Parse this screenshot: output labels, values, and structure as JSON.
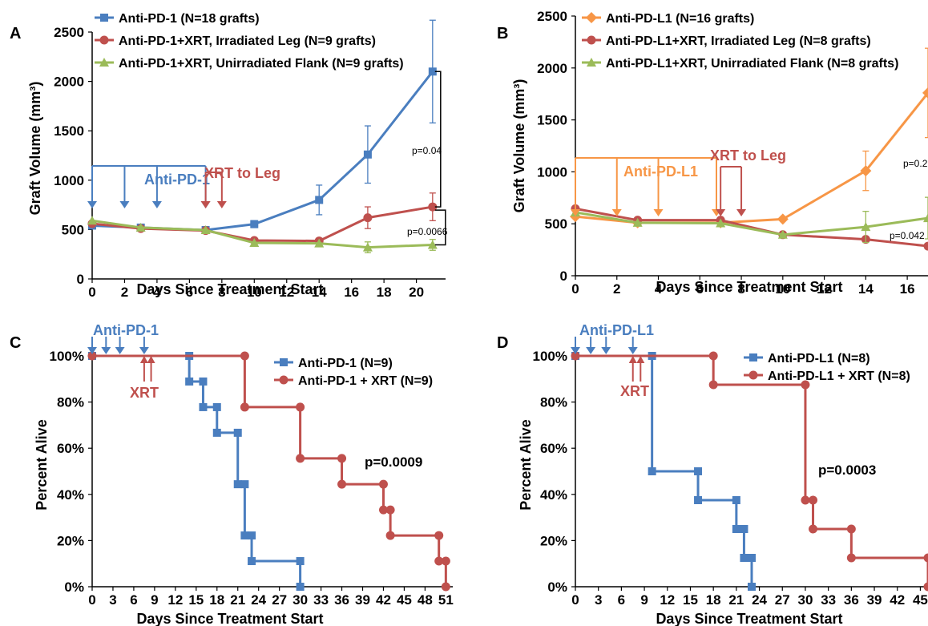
{
  "chart_data": [
    {
      "panel": "A",
      "type": "line",
      "xlabel": "Days Since Treatment Start",
      "ylabel": "Graft Volume (mm³)",
      "xlim": [
        0,
        21.8
      ],
      "ylim": [
        0,
        2500
      ],
      "xticks": [
        0,
        2,
        4,
        6,
        8,
        10,
        12,
        14,
        16,
        18,
        20
      ],
      "yticks": [
        0,
        500,
        1000,
        1500,
        2000,
        2500
      ],
      "legend_position": "top-left",
      "series": [
        {
          "name": "Anti-PD-1 (N=18 grafts)",
          "color": "#4a7ebf",
          "marker": "square",
          "x": [
            0,
            3,
            7,
            10,
            14,
            17,
            21
          ],
          "y": [
            540,
            520,
            495,
            555,
            800,
            1260,
            2100
          ],
          "err": [
            0,
            0,
            0,
            35,
            150,
            290,
            520
          ]
        },
        {
          "name": "Anti-PD-1+XRT, Irradiated Leg (N=9 grafts)",
          "color": "#bf504d",
          "marker": "circle",
          "x": [
            0,
            3,
            7,
            10,
            14,
            17,
            21
          ],
          "y": [
            560,
            510,
            490,
            390,
            385,
            620,
            730
          ],
          "err": [
            0,
            0,
            0,
            0,
            0,
            110,
            140
          ]
        },
        {
          "name": "Anti-PD-1+XRT, Unirradiated Flank (N=9 grafts)",
          "color": "#9bbb59",
          "marker": "triangle",
          "x": [
            0,
            3,
            7,
            10,
            14,
            17,
            21
          ],
          "y": [
            590,
            520,
            495,
            365,
            360,
            320,
            345
          ],
          "err": [
            0,
            0,
            0,
            0,
            0,
            55,
            55
          ]
        }
      ],
      "annotations": {
        "drug_label": "Anti-PD-1",
        "drug_color": "#4a7ebf",
        "drug_days": [
          0,
          2,
          4,
          7
        ],
        "xrt_label": "XRT to Leg",
        "xrt_color": "#bf504d",
        "xrt_days": [
          7,
          8
        ],
        "pvalues": [
          {
            "text": "p=0.04"
          },
          {
            "text": "p=0.0066"
          }
        ]
      }
    },
    {
      "panel": "B",
      "type": "line",
      "xlabel": "Days Since Treatment Start",
      "ylabel": "Graft Volume (mm³)",
      "xlim": [
        0,
        17
      ],
      "ylim": [
        0,
        2500
      ],
      "xticks": [
        0,
        2,
        4,
        6,
        8,
        10,
        12,
        14,
        16
      ],
      "yticks": [
        0,
        500,
        1000,
        1500,
        2000,
        2500
      ],
      "legend_position": "top-left",
      "series": [
        {
          "name": "Anti-PD-L1 (N=16 grafts)",
          "color": "#f79646",
          "marker": "diamond",
          "x": [
            0,
            3,
            7,
            10,
            14,
            17
          ],
          "y": [
            570,
            510,
            510,
            545,
            1010,
            1760
          ],
          "err": [
            0,
            0,
            0,
            0,
            190,
            430
          ]
        },
        {
          "name": "Anti-PD-L1+XRT, Irradiated Leg (N=8 grafts)",
          "color": "#bf504d",
          "marker": "circle",
          "x": [
            0,
            3,
            7,
            10,
            14,
            17
          ],
          "y": [
            645,
            535,
            535,
            395,
            350,
            285
          ],
          "err": [
            0,
            0,
            0,
            0,
            0,
            0
          ]
        },
        {
          "name": "Anti-PD-L1+XRT, Unirradiated Flank (N=8 grafts)",
          "color": "#9bbb59",
          "marker": "triangle",
          "x": [
            0,
            3,
            7,
            10,
            14,
            17
          ],
          "y": [
            610,
            510,
            505,
            395,
            470,
            555
          ],
          "err": [
            0,
            0,
            0,
            0,
            150,
            200
          ]
        }
      ],
      "annotations": {
        "drug_label": "Anti-PD-L1",
        "drug_color": "#f79646",
        "drug_days": [
          0,
          2,
          4,
          6.8
        ],
        "xrt_label": "XRT to Leg",
        "xrt_color": "#bf504d",
        "xrt_days": [
          7,
          8
        ],
        "pvalues": [
          {
            "text": "p=0.2"
          },
          {
            "text": "p=0.042"
          }
        ]
      }
    },
    {
      "panel": "C",
      "type": "line",
      "xlabel": "Days Since Treatment Start",
      "ylabel": "Percent Alive",
      "xlim": [
        0,
        52
      ],
      "ylim": [
        0,
        100
      ],
      "xticks": [
        0,
        3,
        6,
        9,
        12,
        15,
        18,
        21,
        24,
        27,
        30,
        33,
        36,
        39,
        42,
        45,
        48,
        51
      ],
      "yticks": [
        0,
        20,
        40,
        60,
        80,
        100
      ],
      "yticklabels": [
        "0%",
        "20%",
        "40%",
        "60%",
        "80%",
        "100%"
      ],
      "legend_position": "top-right",
      "series": [
        {
          "name": "Anti-PD-1 (N=9)",
          "color": "#4a7ebf",
          "marker": "square",
          "steps": [
            [
              0,
              100
            ],
            [
              14,
              100
            ],
            [
              14,
              88.9
            ],
            [
              16,
              88.9
            ],
            [
              16,
              77.8
            ],
            [
              18,
              77.8
            ],
            [
              18,
              66.7
            ],
            [
              21,
              66.7
            ],
            [
              21,
              44.4
            ],
            [
              22,
              44.4
            ],
            [
              22,
              22.2
            ],
            [
              23,
              22.2
            ],
            [
              23,
              11.1
            ],
            [
              30,
              11.1
            ],
            [
              30,
              0
            ]
          ]
        },
        {
          "name": "Anti-PD-1 + XRT (N=9)",
          "color": "#bf504d",
          "marker": "circle",
          "steps": [
            [
              0,
              100
            ],
            [
              22,
              100
            ],
            [
              22,
              77.8
            ],
            [
              30,
              77.8
            ],
            [
              30,
              55.6
            ],
            [
              36,
              55.6
            ],
            [
              36,
              44.4
            ],
            [
              42,
              44.4
            ],
            [
              42,
              33.3
            ],
            [
              43,
              33.3
            ],
            [
              43,
              22.2
            ],
            [
              50,
              22.2
            ],
            [
              50,
              11.1
            ],
            [
              51,
              11.1
            ],
            [
              51,
              0
            ]
          ]
        }
      ],
      "annotations": {
        "drug_label": "Anti-PD-1",
        "drug_color": "#4a7ebf",
        "drug_days": [
          0,
          2,
          4,
          7.5
        ],
        "xrt_label": "XRT",
        "xrt_color": "#bf504d",
        "xrt_days": [
          7.5,
          8.5
        ],
        "pvalues": [
          {
            "text": "p=0.0009"
          }
        ]
      }
    },
    {
      "panel": "D",
      "type": "line",
      "xlabel": "Days Since Treatment Start",
      "ylabel": "Percent Alive",
      "xlim": [
        0,
        46
      ],
      "ylim": [
        0,
        100
      ],
      "xticks": [
        0,
        3,
        6,
        9,
        12,
        15,
        18,
        21,
        24,
        27,
        30,
        33,
        36,
        39,
        42,
        45
      ],
      "yticks": [
        0,
        20,
        40,
        60,
        80,
        100
      ],
      "yticklabels": [
        "0%",
        "20%",
        "40%",
        "60%",
        "80%",
        "100%"
      ],
      "legend_position": "top-right",
      "series": [
        {
          "name": "Anti-PD-L1 (N=8)",
          "color": "#4a7ebf",
          "marker": "square",
          "steps": [
            [
              0,
              100
            ],
            [
              10,
              100
            ],
            [
              10,
              50
            ],
            [
              16,
              50
            ],
            [
              16,
              37.5
            ],
            [
              21,
              37.5
            ],
            [
              21,
              25
            ],
            [
              22,
              25
            ],
            [
              22,
              12.5
            ],
            [
              23,
              12.5
            ],
            [
              23,
              0
            ]
          ]
        },
        {
          "name": "Anti-PD-L1 + XRT (N=8)",
          "color": "#bf504d",
          "marker": "circle",
          "steps": [
            [
              0,
              100
            ],
            [
              18,
              100
            ],
            [
              18,
              87.5
            ],
            [
              30,
              87.5
            ],
            [
              30,
              37.5
            ],
            [
              31,
              37.5
            ],
            [
              31,
              25
            ],
            [
              36,
              25
            ],
            [
              36,
              12.5
            ],
            [
              46,
              12.5
            ],
            [
              46,
              0
            ]
          ]
        }
      ],
      "annotations": {
        "drug_label": "Anti-PD-L1",
        "drug_color": "#4a7ebf",
        "drug_days": [
          0,
          2,
          4,
          7.5
        ],
        "xrt_label": "XRT",
        "xrt_color": "#bf504d",
        "xrt_days": [
          7.5,
          8.5
        ],
        "pvalues": [
          {
            "text": "p=0.0003"
          }
        ]
      }
    }
  ]
}
